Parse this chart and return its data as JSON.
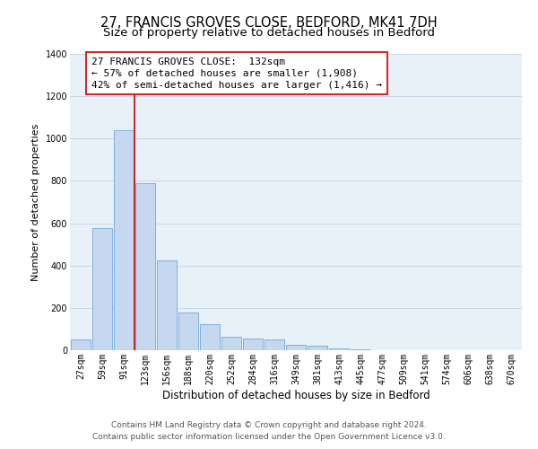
{
  "title1": "27, FRANCIS GROVES CLOSE, BEDFORD, MK41 7DH",
  "title2": "Size of property relative to detached houses in Bedford",
  "xlabel": "Distribution of detached houses by size in Bedford",
  "ylabel": "Number of detached properties",
  "categories": [
    "27sqm",
    "59sqm",
    "91sqm",
    "123sqm",
    "156sqm",
    "188sqm",
    "220sqm",
    "252sqm",
    "284sqm",
    "316sqm",
    "349sqm",
    "381sqm",
    "413sqm",
    "445sqm",
    "477sqm",
    "509sqm",
    "541sqm",
    "574sqm",
    "606sqm",
    "638sqm",
    "670sqm"
  ],
  "values": [
    50,
    575,
    1040,
    790,
    425,
    180,
    125,
    65,
    55,
    50,
    25,
    20,
    10,
    5,
    2,
    0,
    0,
    0,
    0,
    0,
    0
  ],
  "bar_color": "#c5d8f0",
  "bar_edge_color": "#5a9fd4",
  "vline_color": "#cc0000",
  "annotation_text": "27 FRANCIS GROVES CLOSE:  132sqm\n← 57% of detached houses are smaller (1,908)\n42% of semi-detached houses are larger (1,416) →",
  "annotation_box_color": "#ffffff",
  "annotation_box_edge": "#cc0000",
  "ylim": [
    0,
    1400
  ],
  "yticks": [
    0,
    200,
    400,
    600,
    800,
    1000,
    1200,
    1400
  ],
  "footer1": "Contains HM Land Registry data © Crown copyright and database right 2024.",
  "footer2": "Contains public sector information licensed under the Open Government Licence v3.0.",
  "bg_color": "#ffffff",
  "plot_bg_color": "#e8f0f8",
  "grid_color": "#c8d8e8",
  "title1_fontsize": 10.5,
  "title2_fontsize": 9.5,
  "xlabel_fontsize": 8.5,
  "ylabel_fontsize": 8,
  "tick_fontsize": 7,
  "footer_fontsize": 6.5,
  "annotation_fontsize": 8
}
